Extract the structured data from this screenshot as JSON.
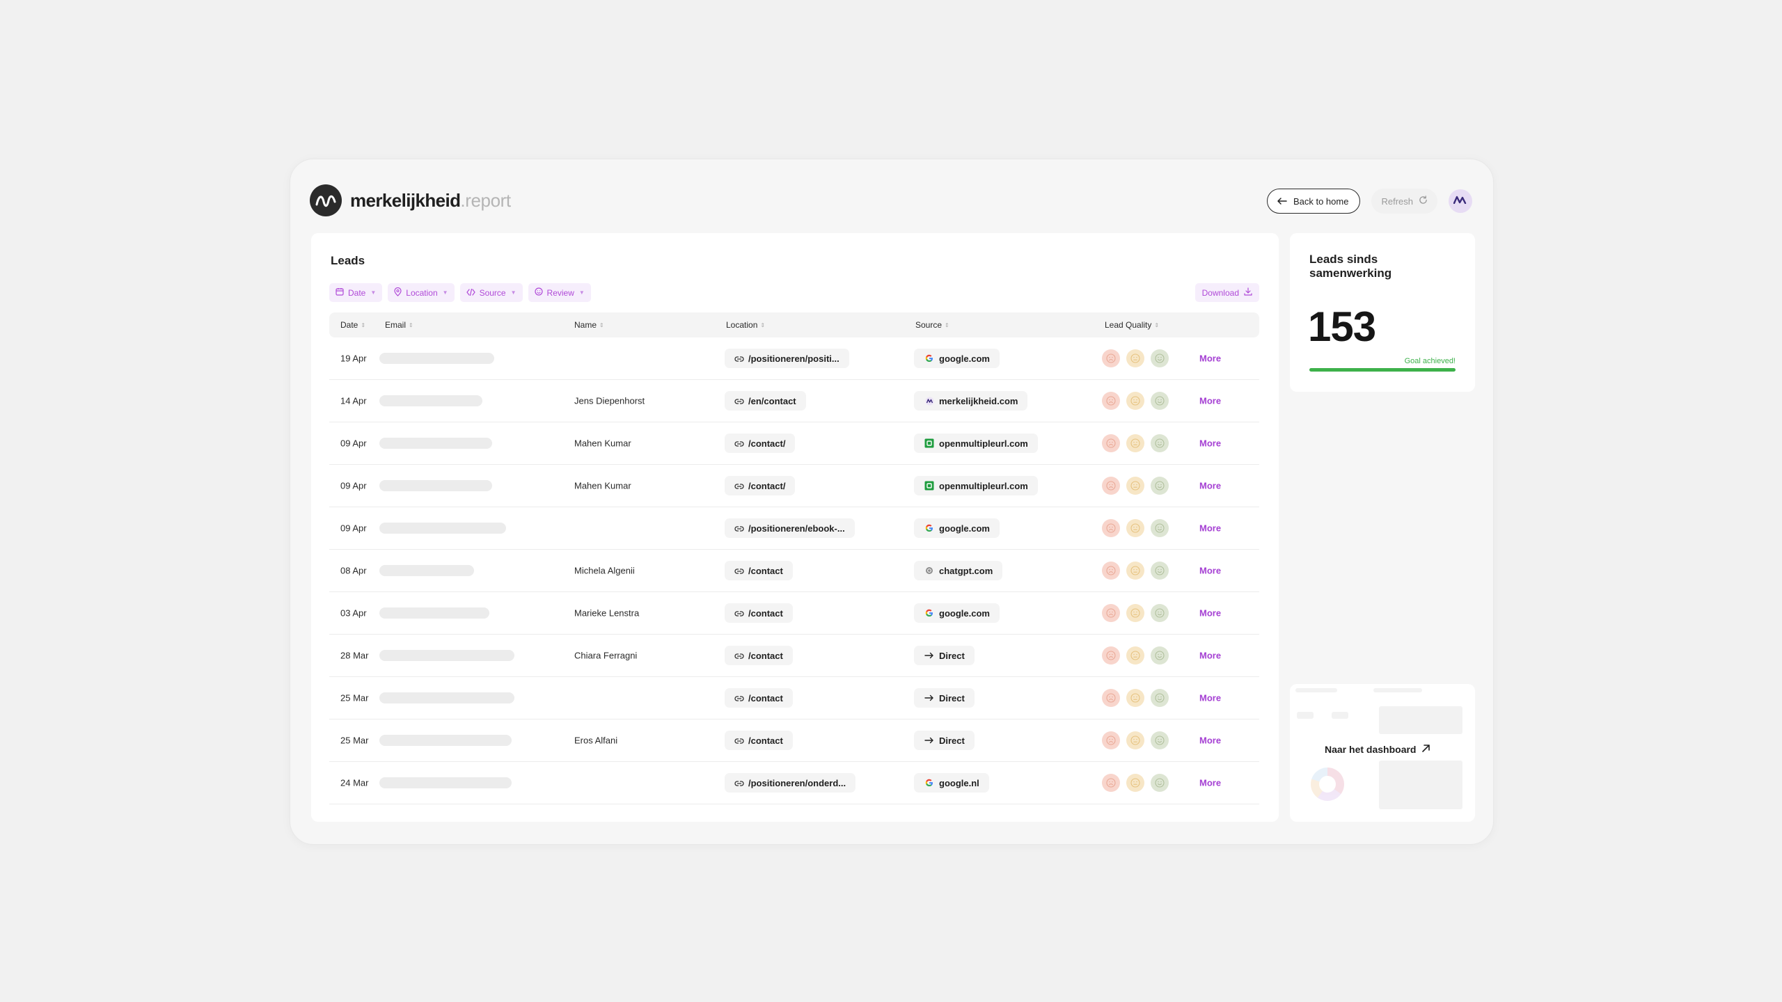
{
  "brand": {
    "name": "merkelijkheid",
    "suffix": ".report"
  },
  "header": {
    "back_label": "Back to home",
    "refresh_label": "Refresh"
  },
  "leads": {
    "title": "Leads",
    "filters": [
      "Date",
      "Location",
      "Source",
      "Review"
    ],
    "download_label": "Download",
    "columns": [
      "Date",
      "Email",
      "Name",
      "Location",
      "Source",
      "Lead Quality"
    ],
    "rows": [
      {
        "date": "19 Apr",
        "name": "",
        "location": "/positioneren/positi...",
        "source": "google.com",
        "source_icon": "google-icon",
        "more": "More"
      },
      {
        "date": "14 Apr",
        "name": "Jens Diepenhorst",
        "location": "/en/contact",
        "source": "merkelijkheid.com",
        "source_icon": "merkelijkheid-icon",
        "more": "More"
      },
      {
        "date": "09 Apr",
        "name": "Mahen Kumar",
        "location": "/contact/",
        "source": "openmultipleurl.com",
        "source_icon": "openmultipleurl-icon",
        "more": "More"
      },
      {
        "date": "09 Apr",
        "name": "Mahen Kumar",
        "location": "/contact/",
        "source": "openmultipleurl.com",
        "source_icon": "openmultipleurl-icon",
        "more": "More"
      },
      {
        "date": "09 Apr",
        "name": "",
        "location": "/positioneren/ebook-...",
        "source": "google.com",
        "source_icon": "google-icon",
        "more": "More"
      },
      {
        "date": "08 Apr",
        "name": "Michela Algenii",
        "location": "/contact",
        "source": "chatgpt.com",
        "source_icon": "chatgpt-icon",
        "more": "More"
      },
      {
        "date": "03 Apr",
        "name": "Marieke Lenstra",
        "location": "/contact",
        "source": "google.com",
        "source_icon": "google-icon",
        "more": "More"
      },
      {
        "date": "28 Mar",
        "name": "Chiara Ferragni",
        "location": "/contact",
        "source": "Direct",
        "source_icon": "arrow-right-icon",
        "more": "More"
      },
      {
        "date": "25 Mar",
        "name": "",
        "location": "/contact",
        "source": "Direct",
        "source_icon": "arrow-right-icon",
        "more": "More"
      },
      {
        "date": "25 Mar",
        "name": "Eros Alfani",
        "location": "/contact",
        "source": "Direct",
        "source_icon": "arrow-right-icon",
        "more": "More"
      },
      {
        "date": "24 Mar",
        "name": "",
        "location": "/positioneren/onderd...",
        "source": "google.nl",
        "source_icon": "google-icon",
        "more": "More"
      }
    ]
  },
  "stat": {
    "title": "Leads sinds samenwerking",
    "value": "153",
    "goal_label": "Goal achieved!",
    "progress": 1.0
  },
  "dashboard": {
    "label": "Naar het dashboard"
  },
  "colors": {
    "accent": "#b04ad8",
    "success": "#3db14a",
    "sad": "#f8d5cc",
    "neutral": "#f7e6c6",
    "happy": "#dde5d3"
  }
}
